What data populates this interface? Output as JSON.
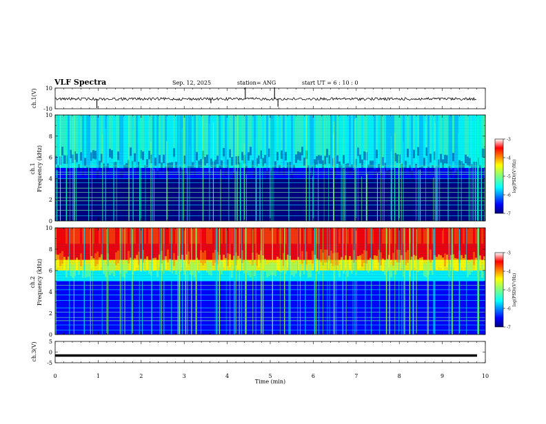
{
  "header": {
    "title": "VLF Spectra",
    "date": "Sep. 12, 2025",
    "station": "station= ANG",
    "start_ut": "start  UT  =   6  : 10 : 0"
  },
  "chart_data": [
    {
      "type": "line",
      "panel": "ch1-waveform",
      "ylabel": "ch.1(V)",
      "ylim": [
        -10,
        10
      ],
      "y_tick_labels": [
        "10",
        "-10"
      ],
      "xlim": [
        0,
        10
      ],
      "baseline": -0.5,
      "color": "#000000"
    },
    {
      "type": "heatmap",
      "panel": "ch1-spectrogram",
      "ylabel": "ch.1\nFrequency (kHz)",
      "ylim": [
        0,
        10
      ],
      "y_tick_labels": [
        "0",
        "2",
        "4",
        "6",
        "8",
        "10"
      ],
      "xlim": [
        0,
        10
      ],
      "colorbar": {
        "label": "log(PSD)(V²/Hz)",
        "range": [
          -7,
          -3
        ],
        "tick_labels": [
          "-3",
          "-4",
          "-5",
          "-6",
          "-7"
        ]
      },
      "description_levels": {
        "high_band": "green-cyan",
        "low_band": "dark blue"
      }
    },
    {
      "type": "heatmap",
      "panel": "ch2-spectrogram",
      "ylabel": "ch.2\nFrequency (kHz)",
      "ylim": [
        0,
        10
      ],
      "y_tick_labels": [
        "0",
        "2",
        "4",
        "6",
        "8",
        "10"
      ],
      "xlim": [
        0,
        10
      ],
      "colorbar": {
        "label": "log(PSD)(V²/Hz)",
        "range": [
          -7,
          -3
        ],
        "tick_labels": [
          "-3",
          "-4",
          "-5",
          "-6",
          "-7"
        ]
      }
    },
    {
      "type": "line",
      "panel": "ch3-waveform",
      "ylabel": "ch.3(V)",
      "ylim": [
        -5,
        5
      ],
      "y_tick_labels": [
        "5",
        "0",
        "-5"
      ],
      "xlim": [
        0,
        10
      ],
      "baseline": -1.6,
      "color": "#000000"
    }
  ],
  "x_axis": {
    "label": "Time (min)",
    "tick_labels": [
      "0",
      "1",
      "2",
      "3",
      "4",
      "5",
      "6",
      "7",
      "8",
      "9",
      "10"
    ]
  },
  "colors": {
    "jet": [
      "#00007f",
      "#0000ff",
      "#007fff",
      "#00ffff",
      "#7fff7f",
      "#ffff00",
      "#ff7f00",
      "#ff0000",
      "#7f0000"
    ]
  }
}
